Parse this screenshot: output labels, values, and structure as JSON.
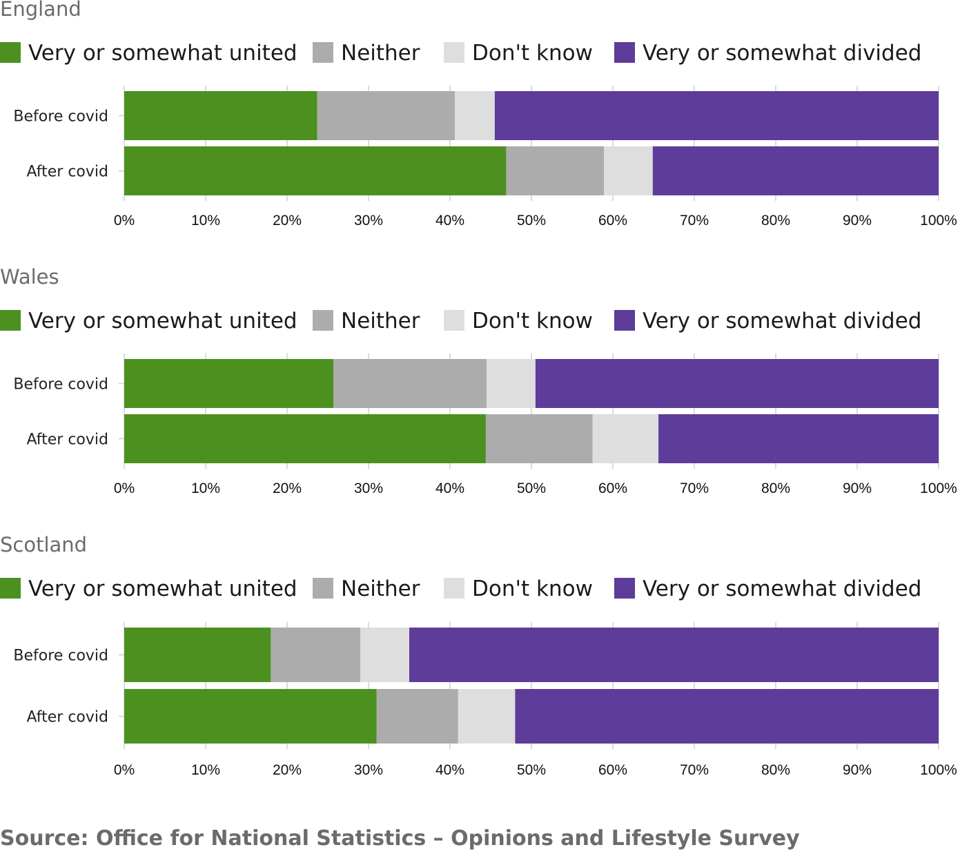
{
  "colors": {
    "united": "#4c9120",
    "neither": "#acacac",
    "dont_know": "#dedede",
    "divided": "#5e3c99",
    "grid": "#cfcfcf",
    "title": "#6b6b6b"
  },
  "legend": [
    {
      "key": "united",
      "label": "Very or somewhat united"
    },
    {
      "key": "neither",
      "label": "Neither"
    },
    {
      "key": "dont_know",
      "label": "Don't know"
    },
    {
      "key": "divided",
      "label": "Very or somewhat divided"
    }
  ],
  "source": "Source: Office for National Statistics – Opinions and Lifestyle Survey",
  "chart_data": [
    {
      "type": "bar",
      "orientation": "horizontal",
      "stacked": true,
      "title": "England",
      "categories": [
        "Before covid",
        "After covid"
      ],
      "series": [
        {
          "name": "Very or somewhat united",
          "values": [
            23.7,
            46.9
          ]
        },
        {
          "name": "Neither",
          "values": [
            16.9,
            12.0
          ]
        },
        {
          "name": "Don't know",
          "values": [
            4.9,
            6.0
          ]
        },
        {
          "name": "Very or somewhat divided",
          "values": [
            54.5,
            35.1
          ]
        }
      ],
      "xlim": [
        0,
        100
      ],
      "ticks": [
        "0%",
        "10%",
        "20%",
        "30%",
        "40%",
        "50%",
        "60%",
        "70%",
        "80%",
        "90%",
        "100%"
      ],
      "grid": true,
      "legend_position": "top"
    },
    {
      "type": "bar",
      "orientation": "horizontal",
      "stacked": true,
      "title": "Wales",
      "categories": [
        "Before covid",
        "After covid"
      ],
      "series": [
        {
          "name": "Very or somewhat united",
          "values": [
            25.7,
            44.4
          ]
        },
        {
          "name": "Neither",
          "values": [
            18.8,
            13.1
          ]
        },
        {
          "name": "Don't know",
          "values": [
            6.0,
            8.1
          ]
        },
        {
          "name": "Very or somewhat divided",
          "values": [
            49.5,
            34.4
          ]
        }
      ],
      "xlim": [
        0,
        100
      ],
      "ticks": [
        "0%",
        "10%",
        "20%",
        "30%",
        "40%",
        "50%",
        "60%",
        "70%",
        "80%",
        "90%",
        "100%"
      ],
      "grid": true,
      "legend_position": "top"
    },
    {
      "type": "bar",
      "orientation": "horizontal",
      "stacked": true,
      "title": "Scotland",
      "categories": [
        "Before covid",
        "After covid"
      ],
      "series": [
        {
          "name": "Very or somewhat united",
          "values": [
            18.0,
            31.0
          ]
        },
        {
          "name": "Neither",
          "values": [
            11.0,
            10.0
          ]
        },
        {
          "name": "Don't know",
          "values": [
            6.0,
            7.0
          ]
        },
        {
          "name": "Very or somewhat divided",
          "values": [
            65.0,
            52.0
          ]
        }
      ],
      "xlim": [
        0,
        100
      ],
      "ticks": [
        "0%",
        "10%",
        "20%",
        "30%",
        "40%",
        "50%",
        "60%",
        "70%",
        "80%",
        "90%",
        "100%"
      ],
      "grid": true,
      "legend_position": "top"
    }
  ]
}
